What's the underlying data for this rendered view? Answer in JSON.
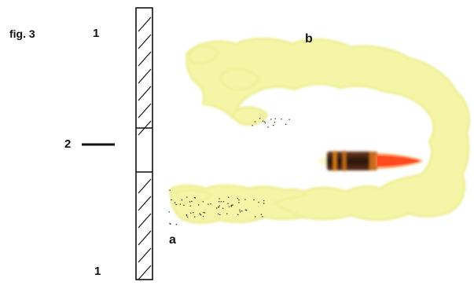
{
  "figure": {
    "title": "fig. 3",
    "labels": {
      "top_one": "1",
      "middle_two": "2",
      "bottom_one": "1",
      "letter_b": "b",
      "letter_a": "a"
    }
  },
  "colors": {
    "background": "#ffffff",
    "ink": "#111111",
    "cloud": "#f4f5a6",
    "cloud_edge": "#eef09a",
    "bullet_tip": "#ff5a2a",
    "bullet_body": "#3a1d10",
    "bullet_band": "#d9801f"
  },
  "icons": {
    "wall": "hatched-wall",
    "projectile": "bullet-icon"
  }
}
